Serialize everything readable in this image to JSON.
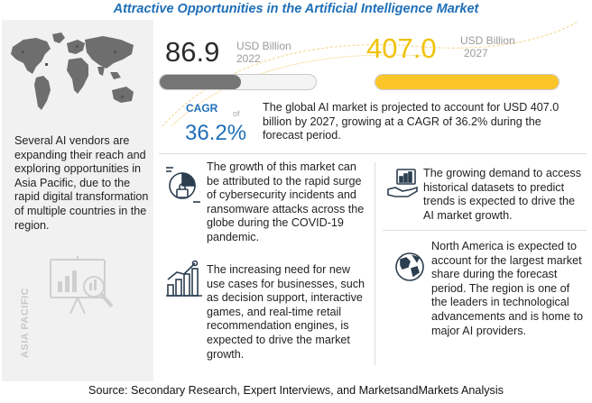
{
  "title": "Attractive Opportunities in the Artificial Intelligence Market",
  "left_panel": {
    "description": "Several AI vendors are expanding their reach and exploring opportunities in Asia Pacific, due to the rapid digital transformation of multiple countries in the region.",
    "side_label": "ASIA PACIFIC"
  },
  "market": {
    "value_2022": "86.9",
    "unit_2022": "USD Billion",
    "year_2022": "2022",
    "fill_2022": 0.52,
    "value_2027": "407.0",
    "unit_2027": "USD Billion",
    "year_2027": "2027",
    "fill_2027": 1.0
  },
  "cagr": {
    "label": "CAGR",
    "of": "of",
    "value": "36.2%",
    "text": "The global AI market is projected to account for USD 407.0 billion by 2027, growing at a CAGR of 36.2% during the forecast period."
  },
  "drivers": [
    {
      "text": "The growth of this market can be attributed to the rapid surge of cybersecurity incidents and ransomware attacks across the globe during the COVID-19 pandemic.",
      "icon": "cybersecurity-icon"
    },
    {
      "text": "The increasing need for new use cases for businesses, such as decision support, interactive games, and real-time retail recommendation engines, is expected to drive the market growth.",
      "icon": "growth-chart-icon"
    },
    {
      "text": "The growing demand to access historical datasets to predict trends is expected to drive the AI market growth.",
      "icon": "data-hand-icon"
    },
    {
      "text": "North America is expected to account for the largest market share during the forecast period. The region is one of the leaders in technological advancements and is home to major AI providers.",
      "icon": "globe-icon"
    }
  ],
  "source": "Source: Secondary Research, Expert Interviews, and MarketsandMarkets Analysis",
  "colors": {
    "title": "#1f6fb8",
    "accent_yellow": "#fcc52a",
    "bar_grey": "#757575",
    "panel_bg": "#f1f1f1"
  }
}
